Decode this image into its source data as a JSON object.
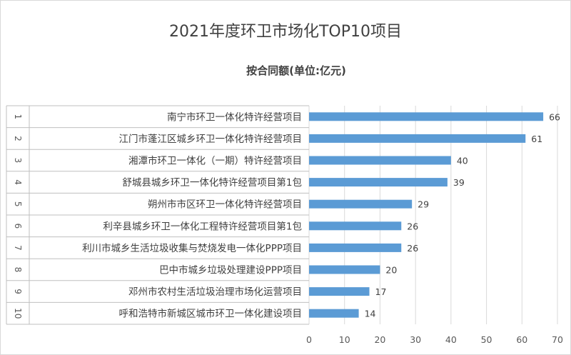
{
  "chart_data": {
    "type": "bar",
    "orientation": "horizontal",
    "title": "2021年度环卫市场化TOP10项目",
    "subtitle": "按合同额(单位:亿元)",
    "ranks": [
      "1",
      "2",
      "3",
      "4",
      "5",
      "6",
      "7",
      "8",
      "9",
      "10"
    ],
    "categories": [
      "南宁市环卫一体化特许经营项目",
      "江门市蓬江区城乡环卫一体化特许经营项目",
      "湘潭市环卫一体化（一期）特许经营项目",
      "舒城县城乡环卫一体化特许经营项目第1包",
      "朔州市市区环卫一体化特许经营项目",
      "利辛县城乡环卫一体化工程特许经营项目第1包",
      "利川市城乡生活垃圾收集与焚烧发电一体化PPP项目",
      "巴中市城乡垃圾处理建设PPP项目",
      "邓州市农村生活垃圾治理市场化运营项目",
      "呼和浩特市新城区城市环卫一体化建设项目"
    ],
    "values": [
      66,
      61,
      40,
      39,
      29,
      26,
      26,
      20,
      17,
      14
    ],
    "xlim": [
      0,
      70
    ],
    "xticks": [
      0,
      10,
      20,
      30,
      40,
      50,
      60,
      70
    ],
    "bar_color": "#5b9bd5",
    "grid": true,
    "legend": false,
    "data_labels": true
  }
}
